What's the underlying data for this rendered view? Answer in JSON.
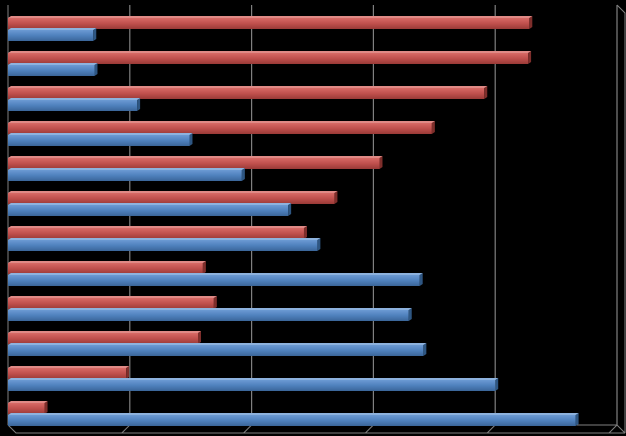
{
  "chart_data": {
    "type": "bar",
    "orientation": "horizontal",
    "style": "3d",
    "background": "#000000",
    "grid": true,
    "gridline_color": "#808080",
    "legend": "none",
    "xlim": [
      0,
      5
    ],
    "categories": [
      "",
      "",
      "",
      "",
      "",
      "",
      "",
      "",
      "",
      "",
      "",
      ""
    ],
    "series": [
      {
        "color": "#C0504D",
        "values": [
          4.28,
          4.27,
          3.91,
          3.48,
          3.05,
          2.68,
          2.43,
          1.6,
          1.69,
          1.56,
          0.97,
          0.3
        ]
      },
      {
        "color": "#4F81BD",
        "values": [
          0.7,
          0.71,
          1.06,
          1.49,
          1.92,
          2.3,
          2.54,
          3.38,
          3.29,
          3.41,
          4.0,
          4.66
        ]
      }
    ]
  }
}
